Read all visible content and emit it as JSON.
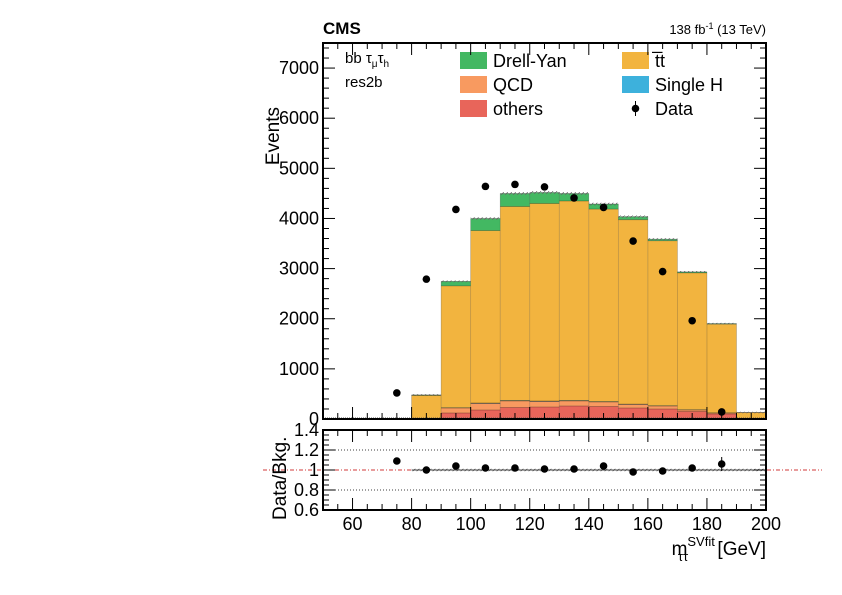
{
  "chart_data": {
    "type": "bar",
    "experiment": "CMS",
    "lumi_label": "138 fb",
    "lumi_sup": "-1",
    "lumi_energy": " (13 TeV)",
    "category": {
      "prefix": "bb ",
      "tau1": "τ",
      "tau1_sub": "μ",
      "tau2": "τ",
      "tau2_sub": "h",
      "line2": "res2b"
    },
    "ylabel": "Events",
    "ratio_ylabel": "Data/Bkg.",
    "xlabel_main": "m",
    "xlabel_sub": "ττ",
    "xlabel_sup": "SVfit",
    "xlabel_unit": " [GeV]",
    "xlim": [
      50,
      200
    ],
    "ylim": [
      0,
      7500
    ],
    "ratio_ylim": [
      0.6,
      1.4
    ],
    "x_ticks": [
      "60",
      "80",
      "100",
      "120",
      "140",
      "160",
      "180",
      "200"
    ],
    "y_ticks": [
      "0",
      "1000",
      "2000",
      "3000",
      "4000",
      "5000",
      "6000",
      "7000"
    ],
    "ratio_ticks": [
      "0.6",
      "0.8",
      "1",
      "1.2",
      "1.4"
    ],
    "bin_edges": [
      50,
      60,
      70,
      80,
      90,
      100,
      110,
      120,
      130,
      140,
      150,
      160,
      170,
      180,
      190,
      200
    ],
    "stack": [
      {
        "name": "others",
        "color": "#e8655a",
        "values": [
          0,
          0,
          0,
          0,
          120,
          180,
          230,
          240,
          260,
          250,
          220,
          200,
          150,
          100,
          10
        ]
      },
      {
        "name": "QCD",
        "color": "#f89a60",
        "values": [
          0,
          0,
          0,
          0,
          100,
          130,
          130,
          110,
          100,
          90,
          70,
          60,
          30,
          20,
          0
        ]
      },
      {
        "name": "Single H",
        "color": "#3db1dc",
        "values": [
          0,
          0,
          0,
          0,
          5,
          8,
          8,
          8,
          8,
          7,
          6,
          5,
          4,
          2,
          0
        ]
      },
      {
        "name": "t̅t",
        "color": "#f2b43f",
        "values": [
          0,
          0,
          0,
          470,
          2430,
          3440,
          3870,
          3940,
          3980,
          3840,
          3680,
          3290,
          2730,
          1770,
          120
        ]
      },
      {
        "name": "Drell-Yan",
        "color": "#43b862",
        "values": [
          0,
          0,
          0,
          10,
          90,
          240,
          260,
          220,
          150,
          100,
          60,
          30,
          20,
          10,
          0
        ]
      }
    ],
    "data": {
      "name": "Data",
      "x": [
        75,
        85,
        95,
        105,
        115,
        125,
        135,
        145,
        155,
        165,
        175,
        185
      ],
      "y": [
        520,
        2790,
        4180,
        4640,
        4680,
        4630,
        4410,
        4220,
        3550,
        2940,
        1960,
        140
      ]
    },
    "ratio": {
      "x": [
        75,
        85,
        95,
        105,
        115,
        125,
        135,
        145,
        155,
        165,
        175,
        185
      ],
      "y": [
        1.09,
        1.0,
        1.04,
        1.02,
        1.02,
        1.01,
        1.01,
        1.04,
        0.98,
        0.99,
        1.02,
        1.06
      ],
      "err": [
        0.03,
        0.015,
        0.012,
        0.012,
        0.012,
        0.012,
        0.012,
        0.012,
        0.014,
        0.015,
        0.02,
        0.07
      ]
    },
    "legend": [
      {
        "name": "Drell-Yan",
        "kind": "box",
        "color": "#43b862"
      },
      {
        "name": "t̅t",
        "kind": "box",
        "color": "#f2b43f"
      },
      {
        "name": "QCD",
        "kind": "box",
        "color": "#f89a60"
      },
      {
        "name": "Single H",
        "kind": "box",
        "color": "#3db1dc"
      },
      {
        "name": "others",
        "kind": "box",
        "color": "#e8655a"
      },
      {
        "name": "Data",
        "kind": "marker",
        "color": "#000000"
      }
    ],
    "legend_position": "top"
  }
}
